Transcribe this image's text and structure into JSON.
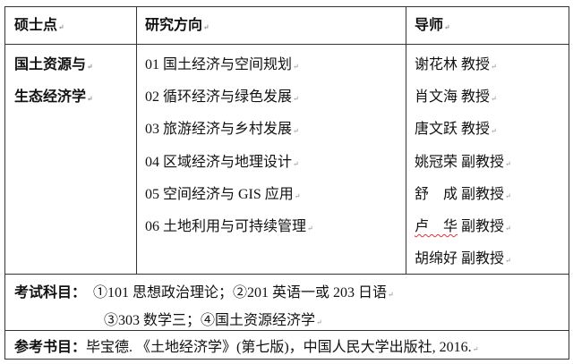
{
  "table": {
    "headers": {
      "program": "硕士点",
      "direction": "研究方向",
      "advisor": "导师"
    },
    "program_lines": [
      "国土资源与",
      "生态经济学"
    ],
    "directions": [
      "01 国土经济与空间规划",
      "02 循环经济与绿色发展",
      "03 旅游经济与乡村发展",
      "04 区域经济与地理设计",
      "05 空间经济与 GIS 应用",
      "06 土地利用与可持续管理"
    ],
    "advisors": [
      {
        "name": "谢花林",
        "title": "教授"
      },
      {
        "name": "肖文海",
        "title": "教授"
      },
      {
        "name": "唐文跃",
        "title": "教授"
      },
      {
        "name": "姚冠荣",
        "title": "副教授"
      },
      {
        "name": "舒　成",
        "title": "副教授"
      },
      {
        "name": "卢　华",
        "title": "副教授"
      },
      {
        "name": "胡绵好",
        "title": "副教授"
      }
    ],
    "exam": {
      "label": "考试科目：",
      "line1": "①101 思想政治理论；②201 英语一或 203 日语",
      "line2": "③303 数学三；④国土资源经济学"
    },
    "reference": {
      "label": "参考书目：",
      "text": "毕宝德. 《土地经济学》(第七版)，中国人民大学出版社, 2016."
    }
  }
}
